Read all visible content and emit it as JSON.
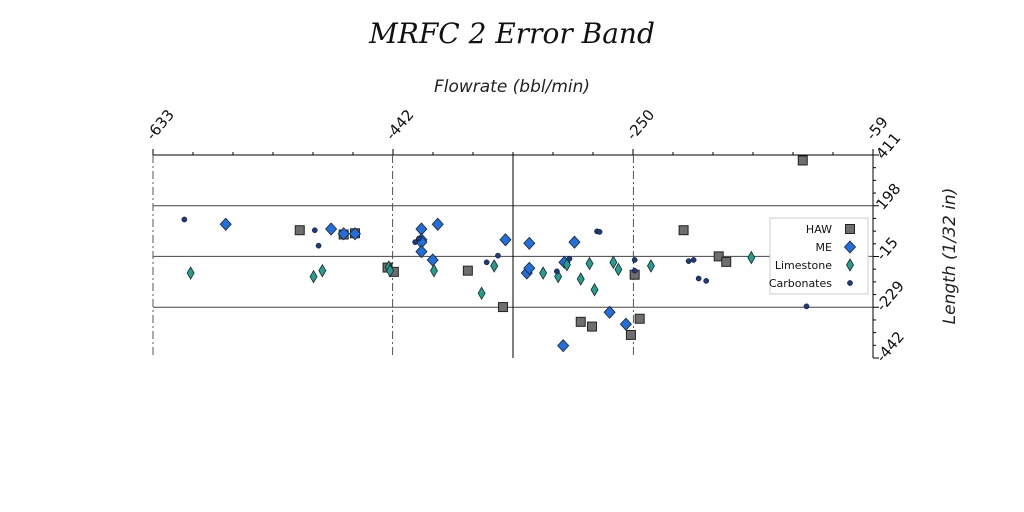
{
  "chart_data": {
    "type": "scatter",
    "title": "MRFC 2 Error Band",
    "xlabel": "Flowrate (bbl/min)",
    "ylabel": "Length (1/32 in)",
    "x_ticks": [
      -633,
      -442,
      -250,
      -59
    ],
    "y_ticks": [
      411,
      198,
      -15,
      -229,
      -442
    ],
    "xlim": [
      -633,
      -59
    ],
    "ylim": [
      -442,
      411
    ],
    "grid": false,
    "legend_position": "right",
    "reference_lines": {
      "vertical_dashdot": [
        -633,
        -442,
        -250
      ],
      "vertical_solid": [
        -346
      ],
      "horizontal_solid": [
        198,
        -15,
        -229
      ]
    },
    "series": [
      {
        "name": "HAW",
        "marker": "square",
        "color": "#6e6e6e",
        "points": [
          [
            -115,
            388
          ],
          [
            -516,
            95
          ],
          [
            -481,
            77
          ],
          [
            -472,
            82
          ],
          [
            -446,
            -62
          ],
          [
            -441,
            -80
          ],
          [
            -382,
            -75
          ],
          [
            -354,
            -228
          ],
          [
            -292,
            -290
          ],
          [
            -283,
            -310
          ],
          [
            -252,
            -345
          ],
          [
            -249,
            -92
          ],
          [
            -245,
            -277
          ],
          [
            -210,
            95
          ],
          [
            -182,
            -15
          ],
          [
            -176,
            -38
          ]
        ]
      },
      {
        "name": "ME",
        "marker": "diamond",
        "color": "#1f6fe0",
        "points": [
          [
            -575,
            120
          ],
          [
            -491,
            100
          ],
          [
            -481,
            80
          ],
          [
            -472,
            80
          ],
          [
            -419,
            100
          ],
          [
            -406,
            120
          ],
          [
            -419,
            55
          ],
          [
            -419,
            45
          ],
          [
            -419,
            5
          ],
          [
            -410,
            -30
          ],
          [
            -352,
            55
          ],
          [
            -333,
            40
          ],
          [
            -335,
            -85
          ],
          [
            -333,
            -65
          ],
          [
            -305,
            -40
          ],
          [
            -297,
            45
          ],
          [
            -269,
            -250
          ],
          [
            -256,
            -300
          ],
          [
            -306,
            -390
          ]
        ]
      },
      {
        "name": "Limestone",
        "marker": "diamond",
        "color": "#1fa090",
        "points": [
          [
            -603,
            -85
          ],
          [
            -505,
            -100
          ],
          [
            -498,
            -75
          ],
          [
            -445,
            -60
          ],
          [
            -444,
            -75
          ],
          [
            -409,
            -75
          ],
          [
            -371,
            -170
          ],
          [
            -361,
            -55
          ],
          [
            -322,
            -85
          ],
          [
            -310,
            -100
          ],
          [
            -303,
            -50
          ],
          [
            -292,
            -110
          ],
          [
            -285,
            -45
          ],
          [
            -281,
            -155
          ],
          [
            -266,
            -40
          ],
          [
            -262,
            -70
          ],
          [
            -236,
            -55
          ],
          [
            -156,
            -20
          ]
        ]
      },
      {
        "name": "Carbonates",
        "marker": "circle",
        "color": "#1c3a80",
        "points": [
          [
            -608,
            140
          ],
          [
            -504,
            95
          ],
          [
            -501,
            30
          ],
          [
            -424,
            45
          ],
          [
            -421,
            60
          ],
          [
            -367,
            -40
          ],
          [
            -358,
            -12
          ],
          [
            -311,
            -78
          ],
          [
            -301,
            -25
          ],
          [
            -279,
            90
          ],
          [
            -277,
            88
          ],
          [
            -249,
            -30
          ],
          [
            -249,
            -75
          ],
          [
            -206,
            -35
          ],
          [
            -202,
            -30
          ],
          [
            -198,
            -108
          ],
          [
            -192,
            -118
          ],
          [
            -112,
            -225
          ]
        ]
      }
    ]
  }
}
